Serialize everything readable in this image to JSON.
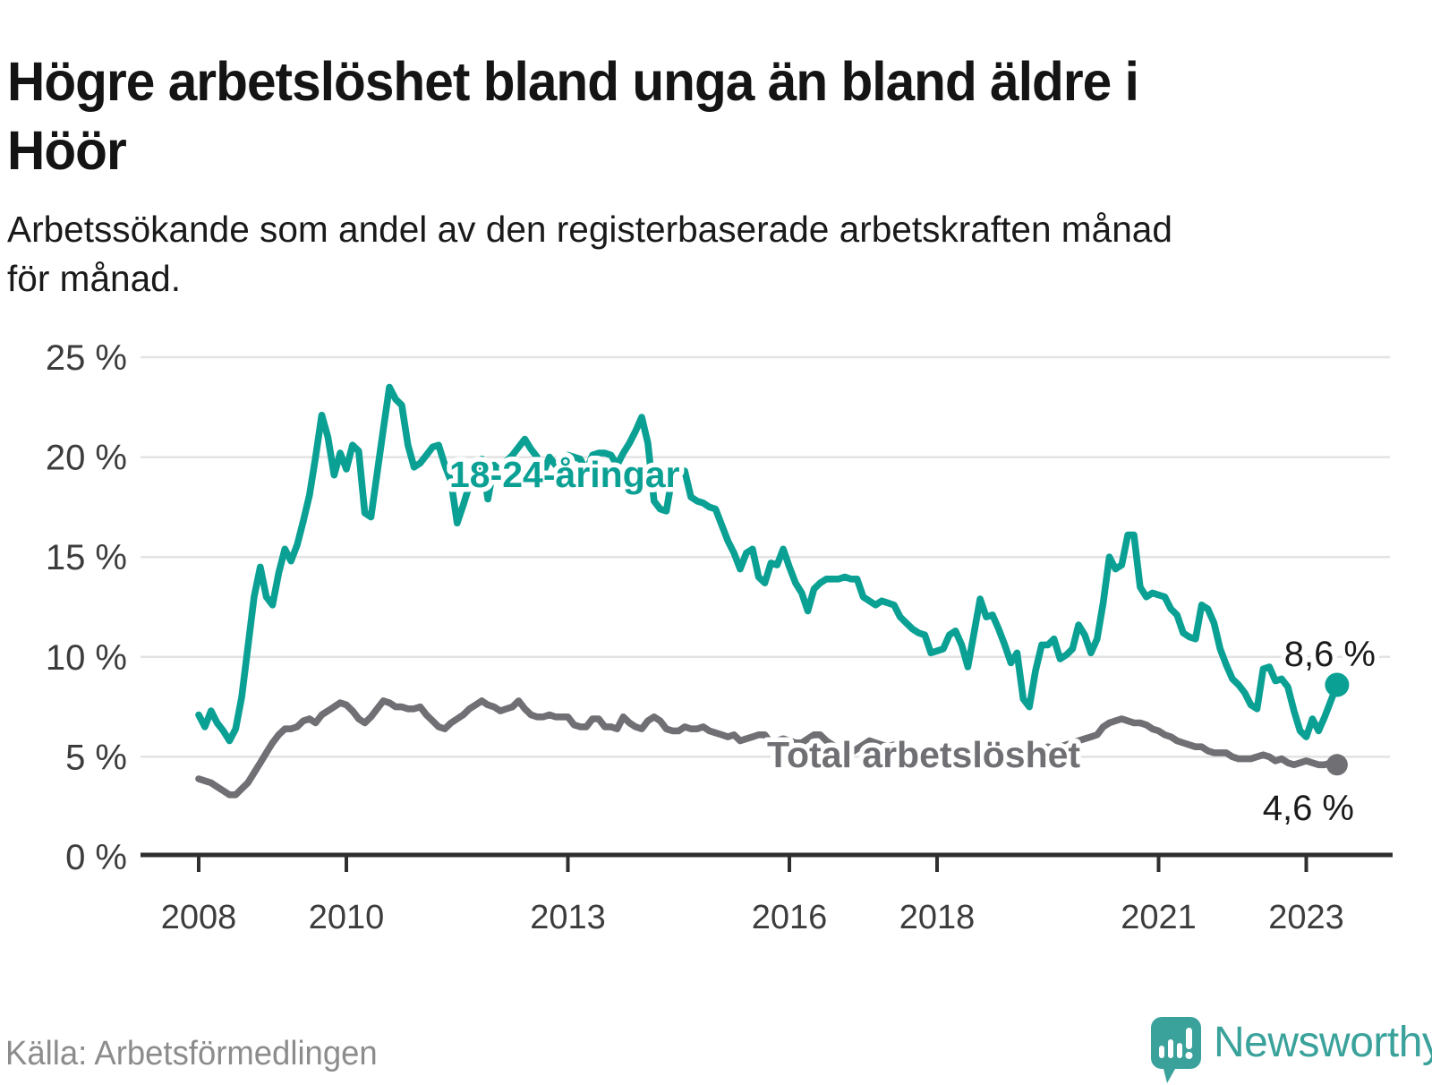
{
  "header": {
    "title_lines": [
      "Högre arbetslöshet bland unga än bland äldre i",
      "Höör"
    ],
    "subtitle_lines": [
      "Arbetssökande som andel av den registerbaserade arbetskraften månad",
      "för månad."
    ]
  },
  "footer": {
    "source": "Källa: Arbetsförmedlingen",
    "brand": "Newsworthy"
  },
  "colors": {
    "youth": "#0BA094",
    "total": "#6F6F74",
    "grid": "#E3E3E3",
    "axis": "#2F2F2F",
    "tick_text": "#3C3C3C",
    "annotation_text": "#1A1A1A",
    "source_text": "#8C8C8C",
    "brand_teal": "#3AA29B"
  },
  "chart_data": {
    "type": "line",
    "unit": "%",
    "x_unit": "month",
    "x_start": "2008-01",
    "x_end": "2023-06",
    "ylim": [
      0,
      25
    ],
    "grid": "horizontal",
    "y_ticks": [
      {
        "value": 0,
        "label": "0 %"
      },
      {
        "value": 5,
        "label": "5 %"
      },
      {
        "value": 10,
        "label": "10 %"
      },
      {
        "value": 15,
        "label": "15 %"
      },
      {
        "value": 20,
        "label": "20 %"
      },
      {
        "value": 25,
        "label": "25 %"
      }
    ],
    "x_ticks": [
      2008,
      2010,
      2013,
      2016,
      2018,
      2021,
      2023
    ],
    "series": [
      {
        "id": "total",
        "name": "Total arbetslöshet",
        "color_key": "total",
        "end_value": 4.6,
        "end_label": "4,6 %",
        "values": [
          3.9,
          3.8,
          3.7,
          3.5,
          3.3,
          3.1,
          3.1,
          3.4,
          3.7,
          4.2,
          4.7,
          5.2,
          5.7,
          6.1,
          6.4,
          6.4,
          6.5,
          6.8,
          6.9,
          6.7,
          7.1,
          7.3,
          7.5,
          7.7,
          7.6,
          7.3,
          6.9,
          6.7,
          7.0,
          7.4,
          7.8,
          7.7,
          7.5,
          7.5,
          7.4,
          7.4,
          7.5,
          7.1,
          6.8,
          6.5,
          6.4,
          6.7,
          6.9,
          7.1,
          7.4,
          7.6,
          7.8,
          7.6,
          7.5,
          7.3,
          7.4,
          7.5,
          7.8,
          7.4,
          7.1,
          7.0,
          7.0,
          7.1,
          7.0,
          7.0,
          7.0,
          6.6,
          6.5,
          6.5,
          6.9,
          6.9,
          6.5,
          6.5,
          6.4,
          7.0,
          6.7,
          6.5,
          6.4,
          6.8,
          7.0,
          6.8,
          6.4,
          6.3,
          6.3,
          6.5,
          6.4,
          6.4,
          6.5,
          6.3,
          6.2,
          6.1,
          6.0,
          6.1,
          5.8,
          5.9,
          6.0,
          6.1,
          6.1,
          5.7,
          5.8,
          5.9,
          5.8,
          5.7,
          5.7,
          5.9,
          6.1,
          6.1,
          5.8,
          5.6,
          5.4,
          5.3,
          5.2,
          5.4,
          5.6,
          5.8,
          5.7,
          5.6,
          5.5,
          5.6,
          5.5,
          5.4,
          5.3,
          5.2,
          5.2,
          5.1,
          5.2,
          5.2,
          5.3,
          5.2,
          5.3,
          5.0,
          4.9,
          4.8,
          4.9,
          5.0,
          5.1,
          5.1,
          5.2,
          5.1,
          5.2,
          5.3,
          5.2,
          5.4,
          5.5,
          5.4,
          5.5,
          5.6,
          5.7,
          5.8,
          5.9,
          6.0,
          6.1,
          6.5,
          6.7,
          6.8,
          6.9,
          6.8,
          6.7,
          6.7,
          6.6,
          6.4,
          6.3,
          6.1,
          6.0,
          5.8,
          5.7,
          5.6,
          5.5,
          5.5,
          5.3,
          5.2,
          5.2,
          5.2,
          5.0,
          4.9,
          4.9,
          4.9,
          5.0,
          5.1,
          5.0,
          4.8,
          4.9,
          4.7,
          4.6,
          4.7,
          4.8,
          4.7,
          4.6,
          4.6,
          4.7,
          4.6
        ]
      },
      {
        "id": "youth",
        "name": "18-24-åringar",
        "color_key": "youth",
        "end_value": 8.6,
        "end_label": "8,6 %",
        "values": [
          7.1,
          6.5,
          7.3,
          6.7,
          6.3,
          5.8,
          6.4,
          8.0,
          10.5,
          13.0,
          14.5,
          13.0,
          12.6,
          14.2,
          15.4,
          14.8,
          15.6,
          16.8,
          18.1,
          20.0,
          22.1,
          21.0,
          19.1,
          20.2,
          19.4,
          20.6,
          20.3,
          17.2,
          17.0,
          19.2,
          21.4,
          23.5,
          22.9,
          22.6,
          20.6,
          19.5,
          19.7,
          20.1,
          20.5,
          20.6,
          19.6,
          18.8,
          16.7,
          17.6,
          18.6,
          19.1,
          19.9,
          17.9,
          19.6,
          19.3,
          19.8,
          20.1,
          20.5,
          20.9,
          20.4,
          20.0,
          19.2,
          20.0,
          19.6,
          19.8,
          20.1,
          20.0,
          19.9,
          19.3,
          20.1,
          20.2,
          20.2,
          20.1,
          19.6,
          20.2,
          20.7,
          21.3,
          22.0,
          20.7,
          17.8,
          17.4,
          17.3,
          19.1,
          19.4,
          19.3,
          18.0,
          17.8,
          17.7,
          17.5,
          17.4,
          16.6,
          15.8,
          15.2,
          14.4,
          15.2,
          15.4,
          14.0,
          13.7,
          14.7,
          14.6,
          15.4,
          14.5,
          13.7,
          13.2,
          12.3,
          13.4,
          13.7,
          13.9,
          13.9,
          13.9,
          14.0,
          13.9,
          13.9,
          13.0,
          12.8,
          12.6,
          12.8,
          12.7,
          12.6,
          12.0,
          11.7,
          11.4,
          11.2,
          11.1,
          10.2,
          10.3,
          10.4,
          11.1,
          11.3,
          10.6,
          9.5,
          11.2,
          12.9,
          12.0,
          12.1,
          11.4,
          10.6,
          9.7,
          10.2,
          7.9,
          7.5,
          9.3,
          10.6,
          10.6,
          10.9,
          9.9,
          10.1,
          10.4,
          11.6,
          11.1,
          10.2,
          10.9,
          12.7,
          15.0,
          14.4,
          14.6,
          16.1,
          16.1,
          13.5,
          13.0,
          13.2,
          13.1,
          13.0,
          12.4,
          12.1,
          11.2,
          11.0,
          10.9,
          12.6,
          12.4,
          11.7,
          10.4,
          9.6,
          8.9,
          8.6,
          8.2,
          7.6,
          7.4,
          9.4,
          9.5,
          8.8,
          8.9,
          8.5,
          7.3,
          6.3,
          6.0,
          6.9,
          6.3,
          7.0,
          7.8,
          8.6
        ]
      }
    ]
  }
}
